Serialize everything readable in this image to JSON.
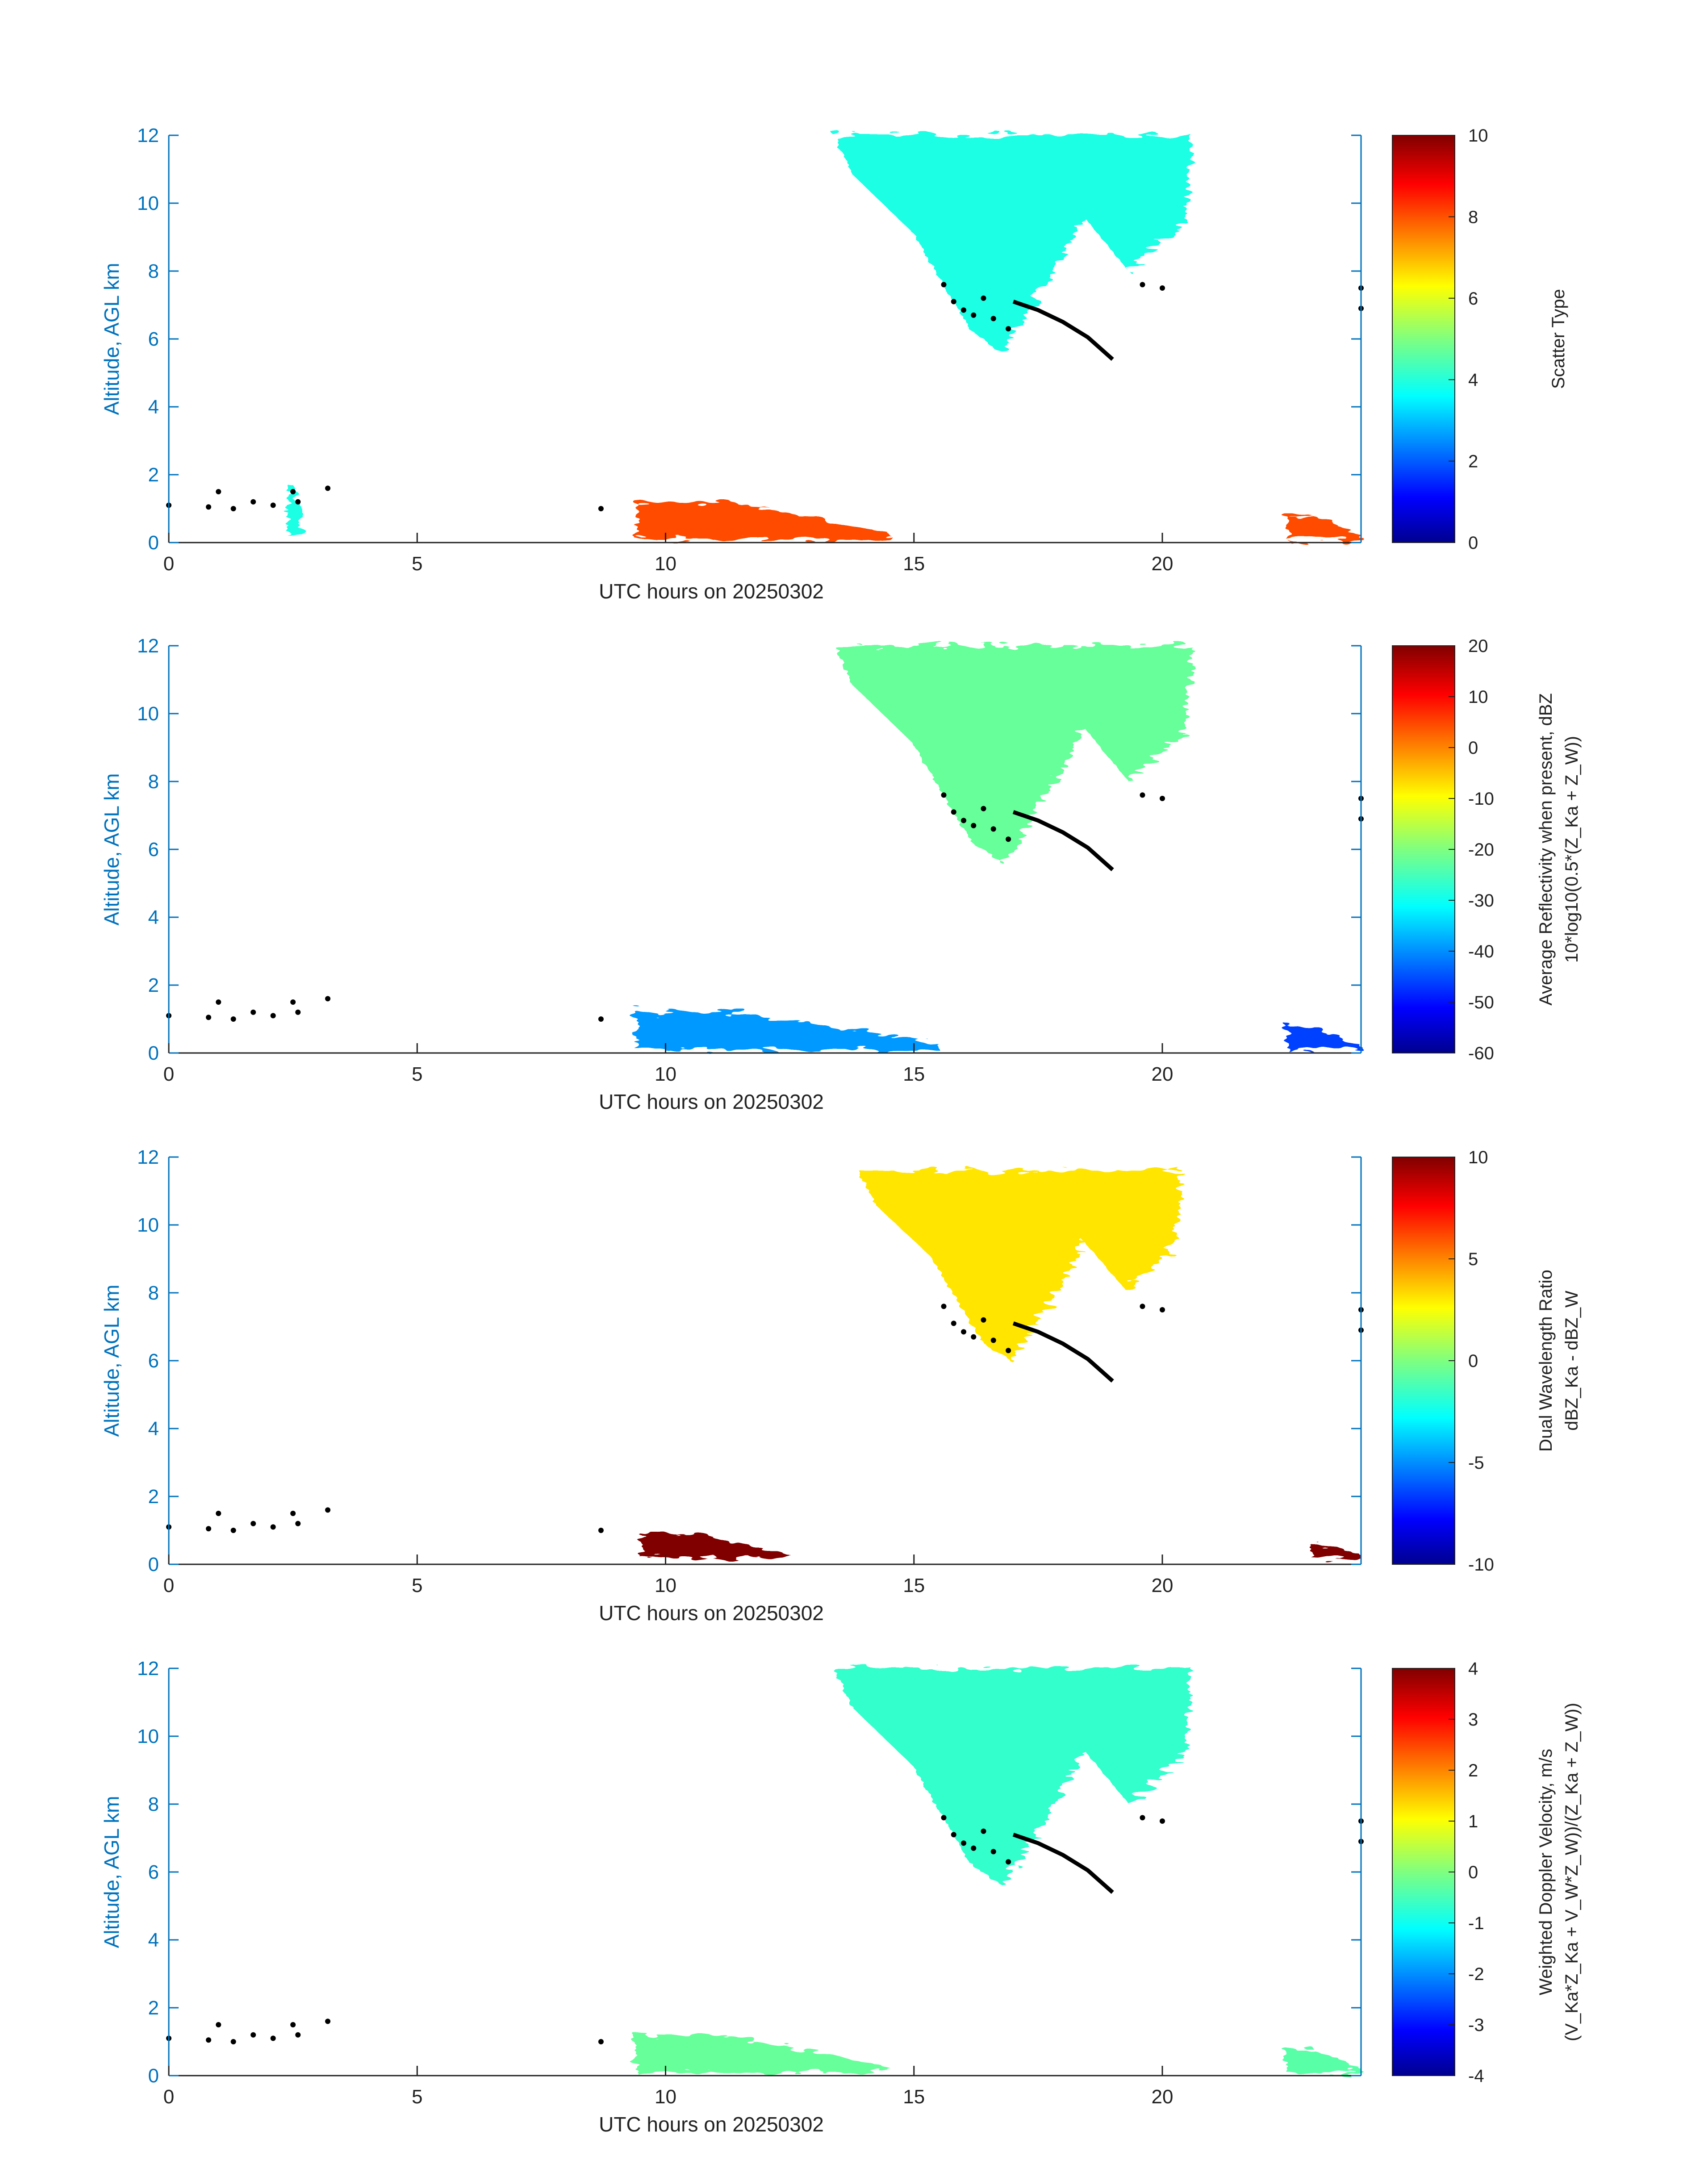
{
  "chart_data": [
    {
      "type": "heatmap",
      "xlabel": "UTC hours on 20250302",
      "ylabel": "Altitude, AGL km",
      "xlim": [
        0,
        24
      ],
      "ylim": [
        0,
        12
      ],
      "xticks": [
        "0",
        "5",
        "10",
        "15",
        "20"
      ],
      "yticks": [
        "0",
        "2",
        "4",
        "6",
        "8",
        "10",
        "12"
      ],
      "colormap": "jet",
      "colorbar": {
        "label_lines": [
          "Scatter Type"
        ],
        "range": [
          0,
          10
        ],
        "ticks": [
          "0",
          "2",
          "4",
          "6",
          "8",
          "10"
        ]
      },
      "features": [
        {
          "x0": 13.4,
          "x1": 20.6,
          "y0": 5.6,
          "y1": 12,
          "value": 4
        },
        {
          "x0": 9.4,
          "x1": 14.5,
          "y0": 0.1,
          "y1": 1.2,
          "value": 8
        },
        {
          "x0": 22.5,
          "x1": 24,
          "y0": 0.1,
          "y1": 0.8,
          "value": 8
        },
        {
          "x0": 2.4,
          "x1": 2.7,
          "y0": 0.2,
          "y1": 1.7,
          "value": 4
        }
      ]
    },
    {
      "type": "heatmap",
      "xlabel": "UTC hours on 20250302",
      "ylabel": "Altitude, AGL km",
      "xlim": [
        0,
        24
      ],
      "ylim": [
        0,
        12
      ],
      "xticks": [
        "0",
        "5",
        "10",
        "15",
        "20"
      ],
      "yticks": [
        "0",
        "2",
        "4",
        "6",
        "8",
        "10",
        "12"
      ],
      "colormap": "jet",
      "colorbar": {
        "label_lines": [
          "Average Reflectivity when present, dBZ",
          "10*log10(0.5*(Z_Ka + Z_W))"
        ],
        "range": [
          -60,
          20
        ],
        "ticks": [
          "-60",
          "-50",
          "-40",
          "-30",
          "-20",
          "-10",
          "0",
          "10",
          "20"
        ]
      },
      "features": [
        {
          "x0": 13.4,
          "x1": 20.6,
          "y0": 5.6,
          "y1": 12,
          "value": -22
        },
        {
          "x0": 9.4,
          "x1": 15.5,
          "y0": 0.1,
          "y1": 1.2,
          "value": -38
        },
        {
          "x0": 22.5,
          "x1": 24,
          "y0": 0.1,
          "y1": 0.8,
          "value": -45
        }
      ]
    },
    {
      "type": "heatmap",
      "xlabel": "UTC hours on 20250302",
      "ylabel": "Altitude, AGL km",
      "xlim": [
        0,
        24
      ],
      "ylim": [
        0,
        12
      ],
      "xticks": [
        "0",
        "5",
        "10",
        "15",
        "20"
      ],
      "yticks": [
        "0",
        "2",
        "4",
        "6",
        "8",
        "10",
        "12"
      ],
      "colormap": "jet",
      "colorbar": {
        "label_lines": [
          "Dual Wavelength Ratio",
          "dBZ_Ka - dBZ_W"
        ],
        "range": [
          -10,
          10
        ],
        "ticks": [
          "-10",
          "-5",
          "0",
          "5",
          "10"
        ]
      },
      "features": [
        {
          "x0": 13.9,
          "x1": 20.4,
          "y0": 6.0,
          "y1": 11.6,
          "value": 3
        },
        {
          "x0": 9.5,
          "x1": 12.5,
          "y0": 0.2,
          "y1": 0.9,
          "value": 10
        },
        {
          "x0": 23.0,
          "x1": 24,
          "y0": 0.2,
          "y1": 0.6,
          "value": 10
        }
      ]
    },
    {
      "type": "heatmap",
      "xlabel": "UTC hours on 20250302",
      "ylabel": "Altitude, AGL km",
      "xlim": [
        0,
        24
      ],
      "ylim": [
        0,
        12
      ],
      "xticks": [
        "0",
        "5",
        "10",
        "15",
        "20"
      ],
      "yticks": [
        "0",
        "2",
        "4",
        "6",
        "8",
        "10",
        "12"
      ],
      "colormap": "jet",
      "colorbar": {
        "label_lines": [
          "Weighted Doppler Velocity, m/s",
          "(V_Ka*Z_Ka + V_W*Z_W))/(Z_Ka + Z_W))"
        ],
        "range": [
          -4,
          4
        ],
        "ticks": [
          "-4",
          "-3",
          "-2",
          "-1",
          "0",
          "1",
          "2",
          "3",
          "4"
        ]
      },
      "features": [
        {
          "x0": 13.4,
          "x1": 20.6,
          "y0": 5.6,
          "y1": 12,
          "value": -0.6
        },
        {
          "x0": 9.4,
          "x1": 14.5,
          "y0": 0.1,
          "y1": 1.2,
          "value": -0.2
        },
        {
          "x0": 22.5,
          "x1": 24,
          "y0": 0.1,
          "y1": 0.8,
          "value": -0.3
        }
      ]
    }
  ],
  "markers": {
    "cloud_base_line": [
      [
        17.0,
        7.1
      ],
      [
        17.5,
        6.85
      ],
      [
        18.0,
        6.5
      ],
      [
        18.5,
        6.05
      ],
      [
        19.0,
        5.4
      ]
    ],
    "cloud_points": [
      [
        15.6,
        7.6
      ],
      [
        15.8,
        7.1
      ],
      [
        16.0,
        6.85
      ],
      [
        16.2,
        6.7
      ],
      [
        16.4,
        7.2
      ],
      [
        16.6,
        6.6
      ],
      [
        16.9,
        6.3
      ],
      [
        19.6,
        7.6
      ],
      [
        20.0,
        7.5
      ],
      [
        24.0,
        7.5
      ],
      [
        24.0,
        6.9
      ]
    ],
    "low_points": [
      [
        0.0,
        1.1
      ],
      [
        0.8,
        1.05
      ],
      [
        1.0,
        1.5
      ],
      [
        1.3,
        1.0
      ],
      [
        1.7,
        1.2
      ],
      [
        2.1,
        1.1
      ],
      [
        2.5,
        1.5
      ],
      [
        2.6,
        1.2
      ],
      [
        3.2,
        1.6
      ],
      [
        8.7,
        1.0
      ]
    ]
  }
}
